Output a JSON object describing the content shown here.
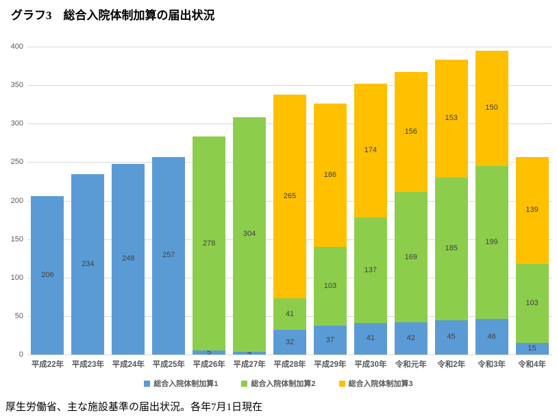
{
  "title": "グラフ3　総合入院体制加算の届出状況",
  "footer": "厚生労働省、主な施設基準の届出状況。各年7月1日現在",
  "chart_data": {
    "type": "bar",
    "stacked": true,
    "title": "グラフ3　総合入院体制加算の届出状況",
    "categories": [
      "平成22年",
      "平成23年",
      "平成24年",
      "平成25年",
      "平成26年",
      "平成27年",
      "平成28年",
      "平成29年",
      "平成30年",
      "令和元年",
      "令和2年",
      "令和3年",
      "令和4年"
    ],
    "series": [
      {
        "name": "総合入院体制加算1",
        "color": "#5B9BD5",
        "values": [
          206,
          234,
          248,
          257,
          5,
          4,
          32,
          37,
          41,
          42,
          45,
          46,
          15
        ]
      },
      {
        "name": "総合入院体制加算2",
        "color": "#8CCE4C",
        "values": [
          0,
          0,
          0,
          0,
          278,
          304,
          41,
          103,
          137,
          169,
          185,
          199,
          103
        ]
      },
      {
        "name": "総合入院体制加算3",
        "color": "#FFC000",
        "values": [
          0,
          0,
          0,
          0,
          0,
          0,
          265,
          186,
          174,
          156,
          153,
          150,
          139
        ]
      }
    ],
    "ylim": [
      0,
      400
    ],
    "ytick_interval": 50,
    "grid": true,
    "data_labels": true,
    "legend_position": "bottom"
  }
}
